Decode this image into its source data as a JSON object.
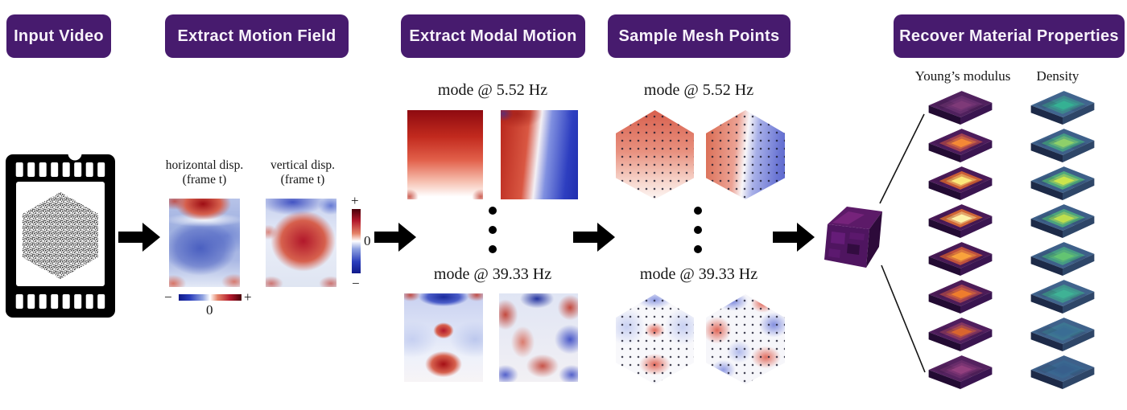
{
  "colors": {
    "header_bg": "#471b6e",
    "header_text": "#f7f2fa",
    "positive_red": "#b2182b",
    "negative_blue": "#2b3ebc",
    "ink": "#111111",
    "young_side_left": "#230b33",
    "young_side_right": "#3a1550",
    "density_side_left": "#1d2a48",
    "density_side_right": "#2e4668"
  },
  "headers": {
    "input_video": "Input Video",
    "extract_motion_field": "Extract Motion Field",
    "extract_modal_motion": "Extract Modal Motion",
    "sample_mesh_points": "Sample Mesh Points",
    "recover_material_properties": "Recover Material Properties"
  },
  "motion_field": {
    "horizontal_label": "horizontal disp.",
    "horizontal_sublabel": "(frame t)",
    "vertical_label": "vertical disp.",
    "vertical_sublabel": "(frame t)",
    "colorbar_vertical": {
      "plus": "+",
      "zero": "0",
      "minus": "−"
    },
    "colorbar_horizontal": {
      "minus": "−",
      "zero": "0",
      "plus": "+"
    }
  },
  "modal_motion": {
    "mode1_title": "mode @ 5.52 Hz",
    "mode2_title": "mode @ 39.33 Hz"
  },
  "mesh_points": {
    "mode1_title": "mode @ 5.52 Hz",
    "mode2_title": "mode @ 39.33 Hz"
  },
  "recover": {
    "young_label": "Young’s modulus",
    "density_label": "Density",
    "young_slabs": [
      {
        "top": "#50215e",
        "mid": "#693070",
        "center": "#7e3a78"
      },
      {
        "top": "#4c1c5c",
        "mid": "#b1484e",
        "center": "#f48935"
      },
      {
        "top": "#4a1a58",
        "mid": "#e06a30",
        "center": "#fbe77a"
      },
      {
        "top": "#4a1a58",
        "mid": "#e87630",
        "center": "#fdf2a8"
      },
      {
        "top": "#481a56",
        "mid": "#d45a38",
        "center": "#f9a33c"
      },
      {
        "top": "#4c1c58",
        "mid": "#b04850",
        "center": "#ef7d2c"
      },
      {
        "top": "#501e5e",
        "mid": "#8c3a62",
        "center": "#d9652e"
      },
      {
        "top": "#54225f",
        "mid": "#6c2e6c",
        "center": "#923f7e"
      }
    ],
    "density_slabs": [
      {
        "top": "#41658e",
        "mid": "#3d8d8c",
        "center": "#35b193"
      },
      {
        "top": "#3e608a",
        "mid": "#45a383",
        "center": "#8ed06a"
      },
      {
        "top": "#3d5f88",
        "mid": "#52b47a",
        "center": "#cbe44c"
      },
      {
        "top": "#3d5f88",
        "mid": "#4fb07c",
        "center": "#bede4e"
      },
      {
        "top": "#3e6089",
        "mid": "#46a584",
        "center": "#63c472"
      },
      {
        "top": "#40638c",
        "mid": "#3f9a8c",
        "center": "#3fb295"
      },
      {
        "top": "#3f628b",
        "mid": "#3d7a93",
        "center": "#3a6d94"
      },
      {
        "top": "#3e608a",
        "mid": "#3a6890",
        "center": "#385f8c"
      }
    ]
  }
}
